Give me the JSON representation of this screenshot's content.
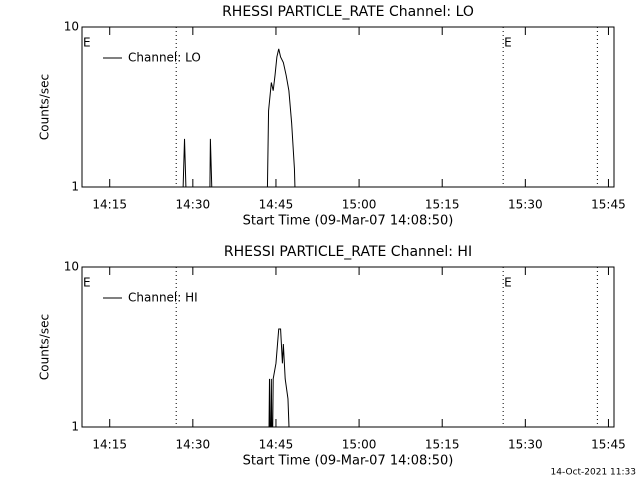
{
  "chart_data": [
    {
      "type": "line",
      "title": "RHESSI PARTICLE_RATE Channel: LO",
      "xlabel": "Start Time (09-Mar-07 14:08:50)",
      "ylabel": "Counts/sec",
      "xlim": [
        "14:10",
        "15:46"
      ],
      "xticks": [
        "14:15",
        "14:30",
        "14:45",
        "15:00",
        "15:15",
        "15:30",
        "15:45"
      ],
      "ylim": [
        1,
        10
      ],
      "yticks": [
        1,
        10
      ],
      "log_y": true,
      "legend": "top-left",
      "flag_lines": [
        "14:27",
        "15:26",
        "15:43"
      ],
      "annotations": [
        {
          "text": "E",
          "x": "14:10"
        },
        {
          "text": "E",
          "x": "15:26"
        }
      ],
      "x": [
        "14:28:00",
        "14:28:30",
        "14:29:00",
        "14:33:00",
        "14:33:10",
        "14:33:40",
        "14:43:20",
        "14:43:40",
        "14:44:10",
        "14:44:30",
        "14:44:50",
        "14:45:10",
        "14:45:30",
        "14:45:50",
        "14:46:20",
        "14:46:50",
        "14:47:20",
        "14:47:50",
        "14:48:20",
        "14:48:40"
      ],
      "series": [
        {
          "name": "Channel: LO",
          "color": "#000000",
          "values": [
            0.5,
            2,
            0.5,
            0.5,
            2,
            0.5,
            0.5,
            3,
            4.5,
            4,
            5,
            6.5,
            7.3,
            6.5,
            6,
            5,
            4,
            2.5,
            1.3,
            0.5
          ]
        }
      ]
    },
    {
      "type": "line",
      "title": "RHESSI PARTICLE_RATE Channel: HI",
      "xlabel": "Start Time (09-Mar-07 14:08:50)",
      "ylabel": "Counts/sec",
      "xlim": [
        "14:10",
        "15:46"
      ],
      "xticks": [
        "14:15",
        "14:30",
        "14:45",
        "15:00",
        "15:15",
        "15:30",
        "15:45"
      ],
      "ylim": [
        1,
        10
      ],
      "yticks": [
        1,
        10
      ],
      "log_y": true,
      "legend": "top-left",
      "flag_lines": [
        "14:27",
        "15:26",
        "15:43"
      ],
      "annotations": [
        {
          "text": "E",
          "x": "14:10"
        },
        {
          "text": "E",
          "x": "15:26"
        }
      ],
      "x": [
        "14:43:40",
        "14:43:50",
        "14:44:00",
        "14:44:10",
        "14:44:20",
        "14:44:30",
        "14:45:00",
        "14:45:30",
        "14:45:50",
        "14:46:10",
        "14:46:20",
        "14:46:40",
        "14:47:10",
        "14:47:40"
      ],
      "series": [
        {
          "name": "Channel: HI",
          "color": "#000000",
          "values": [
            0.5,
            2,
            0.5,
            2,
            0.5,
            2,
            2.5,
            4.1,
            4.1,
            2.5,
            3.3,
            2,
            1.5,
            0.5
          ]
        }
      ]
    }
  ],
  "footer": "14-Oct-2021 11:33"
}
